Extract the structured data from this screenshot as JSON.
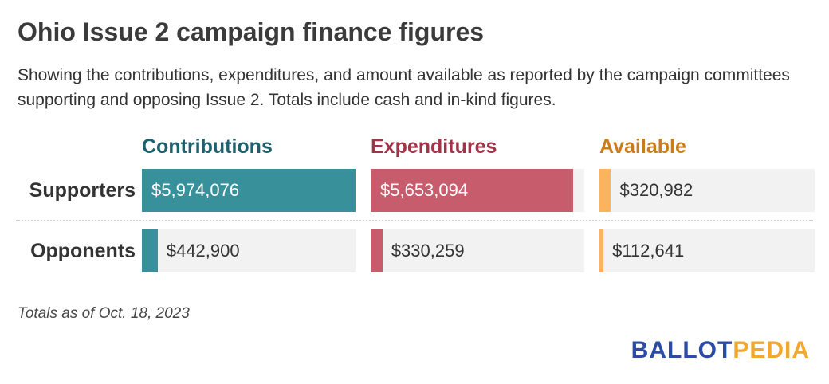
{
  "chart_data": {
    "type": "bar",
    "orientation": "horizontal",
    "title": "Ohio Issue 2 campaign finance figures",
    "subtitle": "Showing the contributions, expenditures, and amount available as reported by the campaign committees supporting and opposing Issue 2. Totals include cash and in-kind figures.",
    "note": "Totals as of Oct. 18, 2023",
    "categories": [
      "Supporters",
      "Opponents"
    ],
    "series": [
      {
        "name": "Contributions",
        "header_color": "#1d616d",
        "bar_color": "#38909a",
        "values": [
          5974076,
          442900
        ],
        "labels": [
          "$5,974,076",
          "$442,900"
        ]
      },
      {
        "name": "Expenditures",
        "header_color": "#a13349",
        "bar_color": "#c75c6c",
        "values": [
          5653094,
          330259
        ],
        "labels": [
          "$5,653,094",
          "$330,259"
        ]
      },
      {
        "name": "Available",
        "header_color": "#c87d1d",
        "bar_color": "#fbb35e",
        "values": [
          320982,
          112641
        ],
        "labels": [
          "$320,982",
          "$112,641"
        ]
      }
    ],
    "x_max": 5974076,
    "track_color": "#f2f2f2",
    "grid": false,
    "legend_position": "column-headers"
  },
  "logo": {
    "part1": "BALLOT",
    "part2": "PEDIA",
    "part1_color": "#2b4ba6",
    "part2_color": "#f2a72e"
  }
}
